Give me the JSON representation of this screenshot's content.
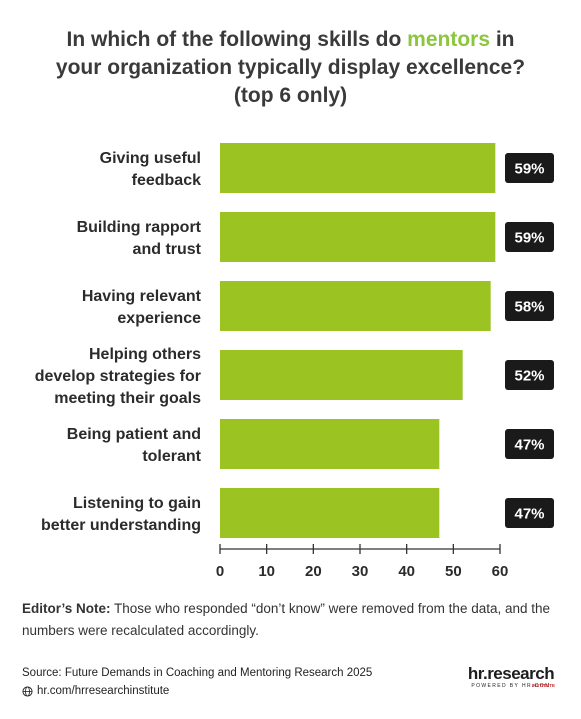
{
  "title": {
    "line1_pre": "In which of the following skills do ",
    "line1_accent": "mentors",
    "line1_post": " in",
    "line2": "your organization typically display excellence?",
    "line3": "(top 6 only)"
  },
  "colors": {
    "bar": "#9bc423",
    "accent": "#8cc63f",
    "label_box": "#1a1a1a",
    "label_text": "#ffffff"
  },
  "chart_data": {
    "type": "bar",
    "orientation": "horizontal",
    "categories": [
      [
        "Giving useful",
        "feedback"
      ],
      [
        "Building rapport",
        "and trust"
      ],
      [
        "Having relevant",
        "experience"
      ],
      [
        "Helping others",
        "develop strategies for",
        "meeting their goals"
      ],
      [
        "Being patient and",
        "tolerant"
      ],
      [
        "Listening to gain",
        "better understanding"
      ]
    ],
    "values": [
      59,
      59,
      58,
      52,
      47,
      47
    ],
    "value_labels": [
      "59%",
      "59%",
      "58%",
      "52%",
      "47%",
      "47%"
    ],
    "xlim": [
      0,
      60
    ],
    "xticks": [
      "0",
      "10",
      "20",
      "30",
      "40",
      "50",
      "60"
    ],
    "grid": false,
    "legend": "none"
  },
  "note": {
    "label": "Editor’s Note:",
    "text": " Those who responded “don’t know” were removed from the data, and the numbers were recalculated accordingly."
  },
  "source": "Source:  Future Demands in Coaching and Mentoring Research 2025",
  "website": "hr.com/hrresearchinstitute",
  "logo": {
    "text": "hr.research",
    "badge": "INSTITUTE",
    "tagline": "POWERED BY HR.COM"
  }
}
